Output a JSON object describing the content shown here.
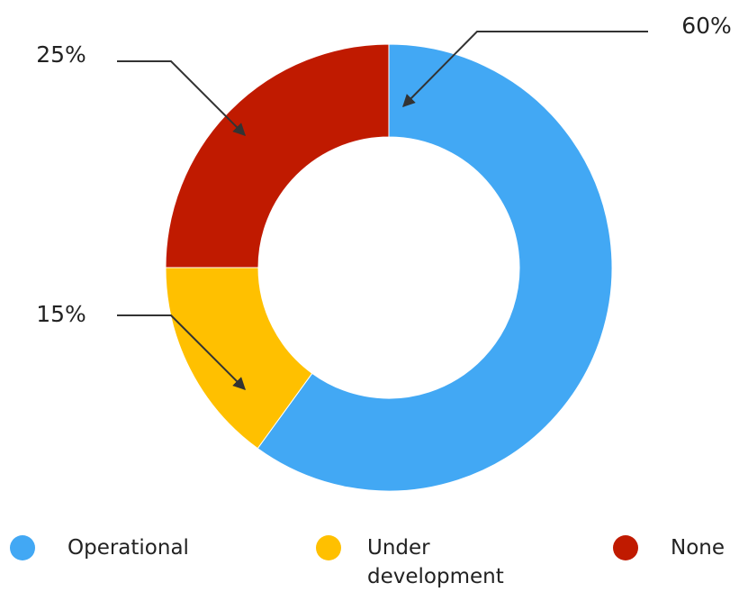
{
  "chart_data": {
    "type": "pie",
    "categories": [
      "Operational",
      "Under development",
      "None"
    ],
    "values": [
      60,
      15,
      25
    ],
    "value_labels": [
      "60%",
      "15%",
      "25%"
    ],
    "colors": [
      "#42a8f4",
      "#ffc000",
      "#c01a00"
    ]
  }
}
